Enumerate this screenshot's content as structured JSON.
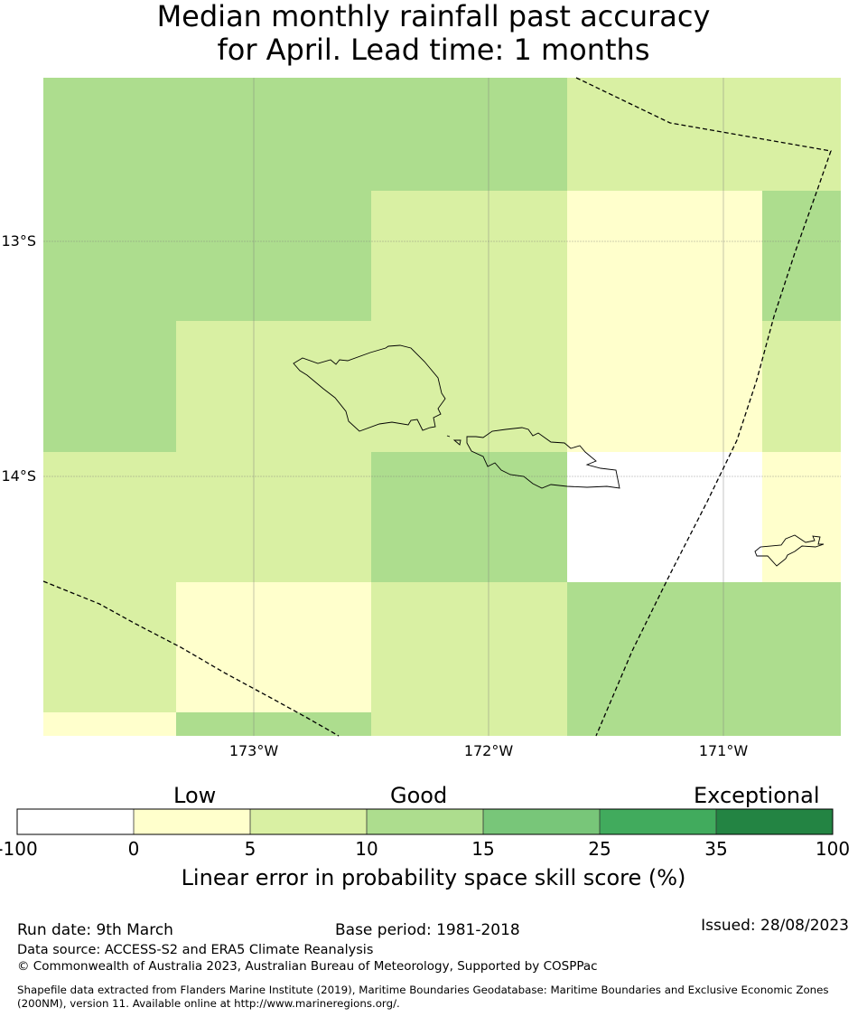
{
  "title": {
    "line1": "Median monthly rainfall past accuracy",
    "line2": "for April. Lead time: 1 months"
  },
  "map": {
    "lat_labels": [
      "13°S",
      "14°S"
    ],
    "lon_labels": [
      "173°W",
      "172°W",
      "171°W"
    ],
    "skill_category_colors": {
      "none": "#ffffff",
      "0-5": "#ffffcc",
      "5-10": "#d9f0a3",
      "10-15": "#addd8e",
      "15-25": "#78c679",
      "25-35": "#41ab5d",
      "35-100": "#238443"
    }
  },
  "legend": {
    "categories": [
      "Low",
      "Good",
      "Exceptional"
    ],
    "ticks": [
      "-100",
      "0",
      "5",
      "10",
      "15",
      "25",
      "35",
      "100"
    ],
    "colors": [
      "#ffffff",
      "#ffffcc",
      "#d9f0a3",
      "#addd8e",
      "#78c679",
      "#41ab5d",
      "#238443"
    ],
    "axis_label": "Linear error in probability space skill score (%)"
  },
  "footer": {
    "run_date": "Run date: 9th March",
    "base_period": "Base period: 1981-2018",
    "issued": "Issued: 28/08/2023",
    "data_source": "Data source: ACCESS-S2 and ERA5 Climate Reanalysis",
    "copyright": "© Commonwealth of Australia 2023, Australian Bureau of Meteorology, Supported by COSPPac",
    "shapefile_line1": "Shapefile data extracted from Flanders Marine Institute (2019), Maritime Boundaries Geodatabase: Maritime Boundaries and Exclusive Economic Zones",
    "shapefile_line2": "(200NM), version 11. Available online at http://www.marineregions.org/."
  }
}
